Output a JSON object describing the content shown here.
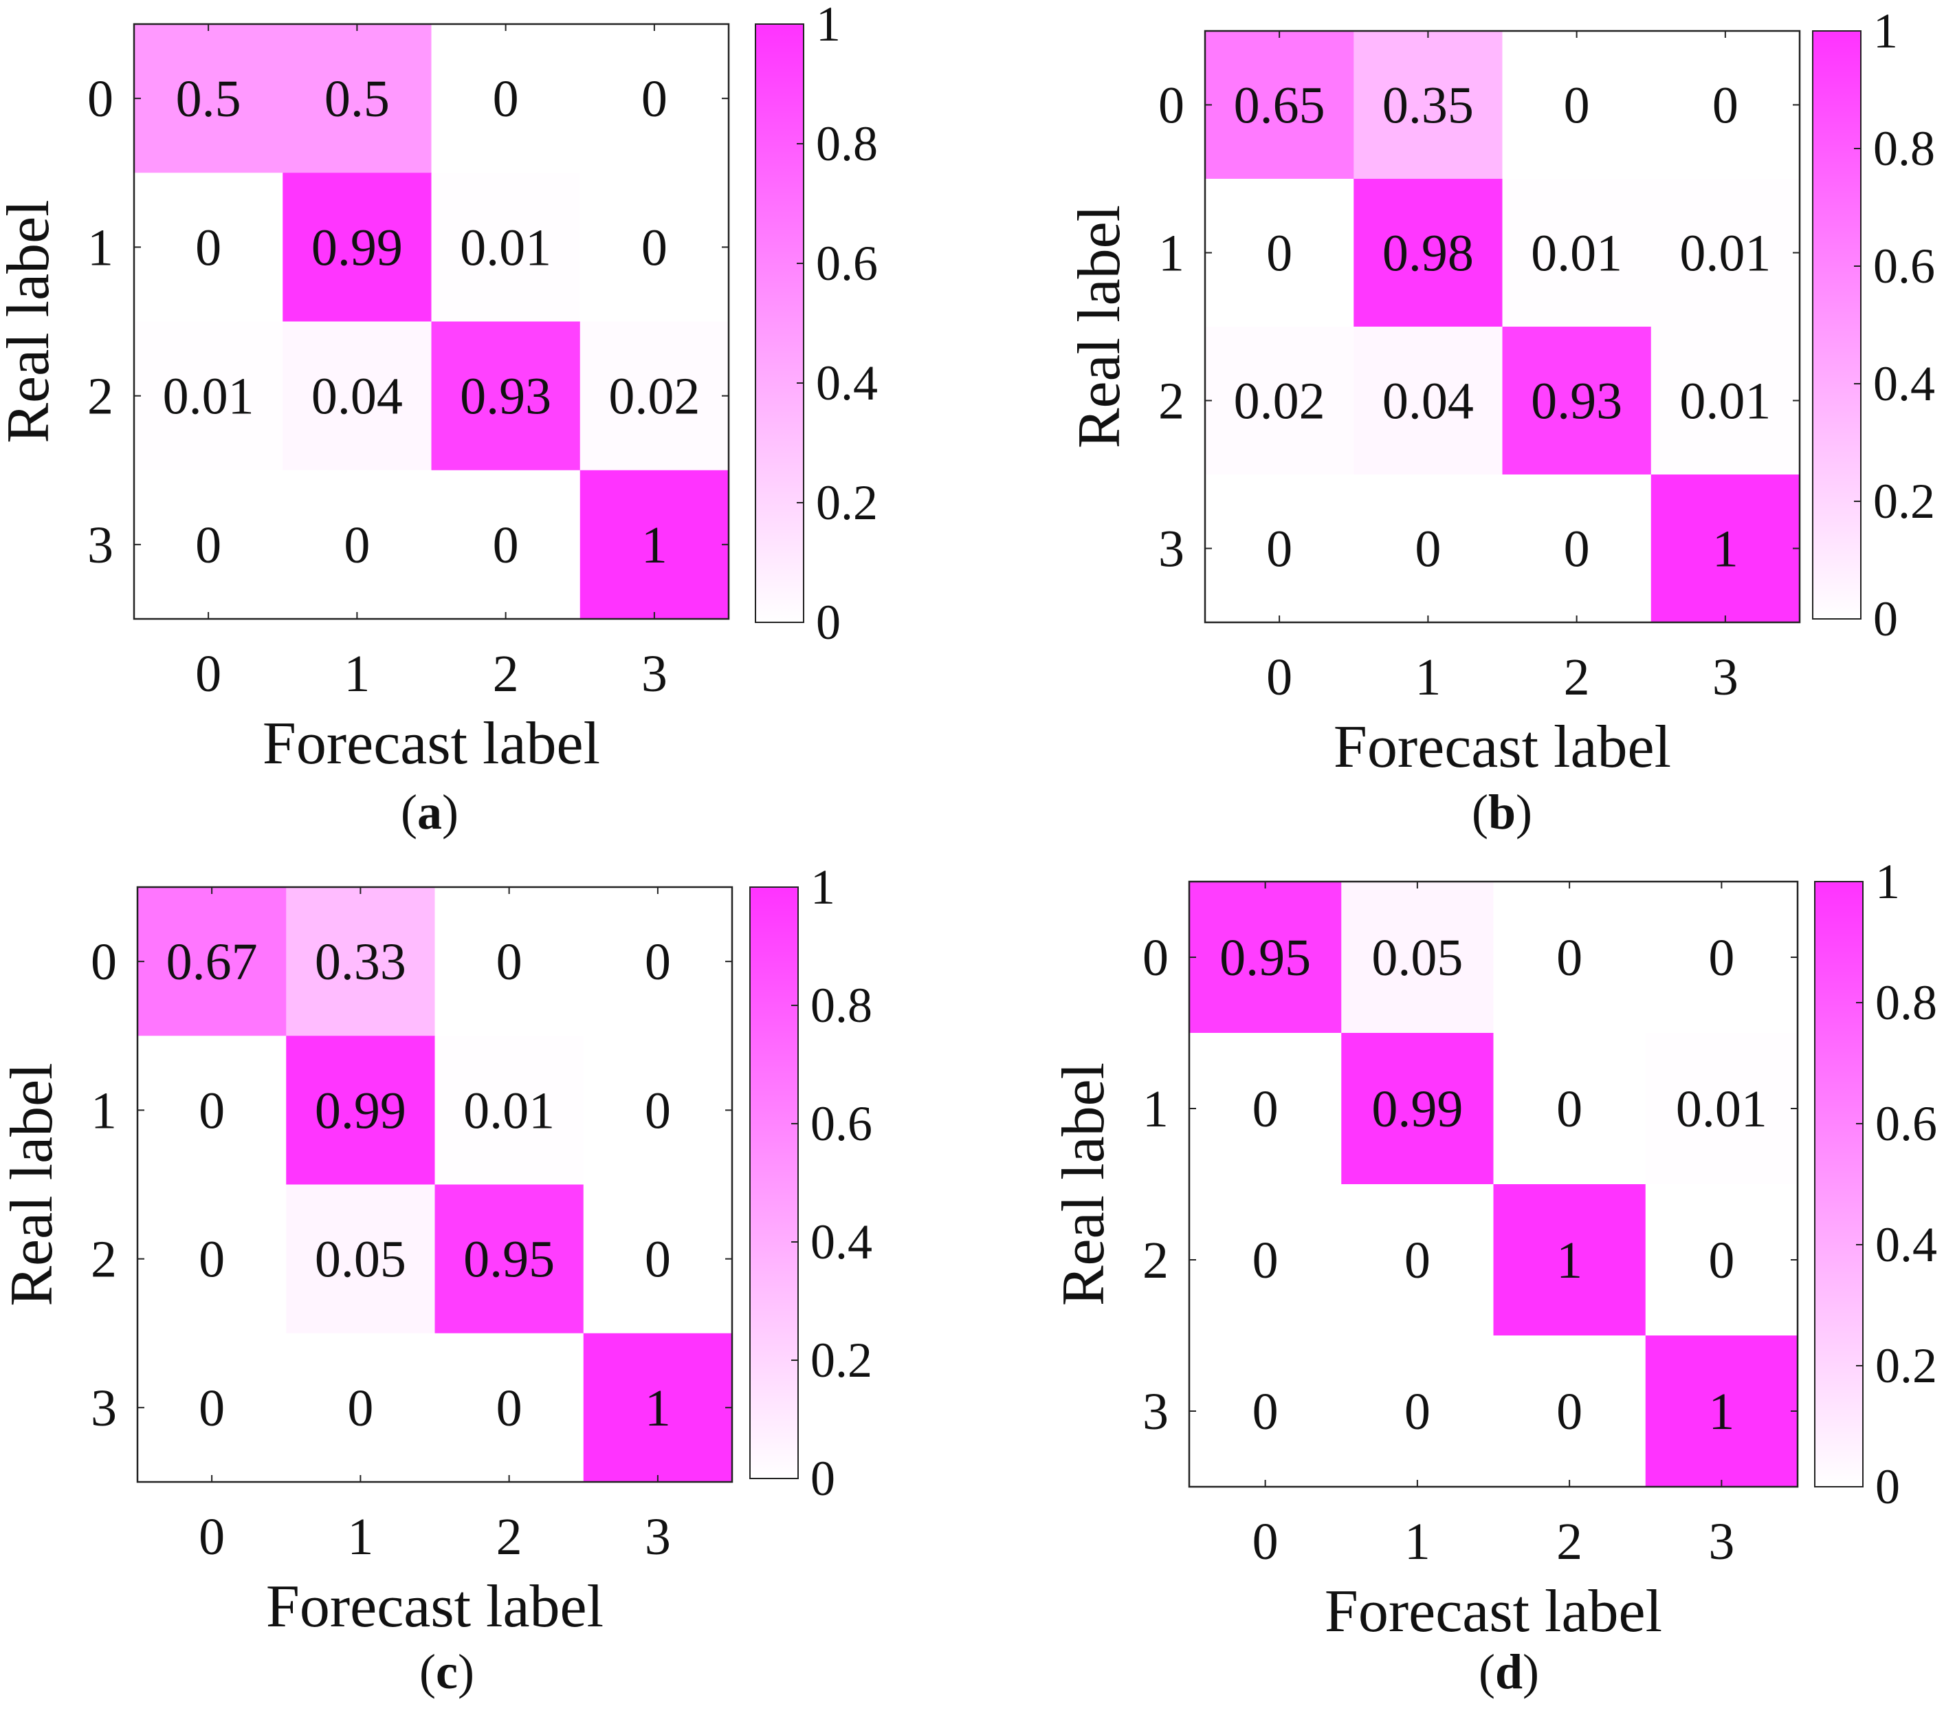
{
  "chart_data": [
    {
      "type": "heatmap",
      "panel_label": "a",
      "xlabel": "Forecast label",
      "ylabel": "Real label",
      "x_categories": [
        "0",
        "1",
        "2",
        "3"
      ],
      "y_categories": [
        "0",
        "1",
        "2",
        "3"
      ],
      "values": [
        [
          "0.5",
          "0.5",
          "0",
          "0"
        ],
        [
          "0",
          "0.99",
          "0.01",
          "0"
        ],
        [
          "0.01",
          "0.04",
          "0.93",
          "0.02"
        ],
        [
          "0",
          "0",
          "0",
          "1"
        ]
      ],
      "colorbar": {
        "range": [
          0,
          1
        ],
        "ticks": [
          "0",
          "0.2",
          "0.4",
          "0.6",
          "0.8",
          "1"
        ]
      }
    },
    {
      "type": "heatmap",
      "panel_label": "b",
      "xlabel": "Forecast label",
      "ylabel": "Real label",
      "x_categories": [
        "0",
        "1",
        "2",
        "3"
      ],
      "y_categories": [
        "0",
        "1",
        "2",
        "3"
      ],
      "values": [
        [
          "0.65",
          "0.35",
          "0",
          "0"
        ],
        [
          "0",
          "0.98",
          "0.01",
          "0.01"
        ],
        [
          "0.02",
          "0.04",
          "0.93",
          "0.01"
        ],
        [
          "0",
          "0",
          "0",
          "1"
        ]
      ],
      "colorbar": {
        "range": [
          0,
          1
        ],
        "ticks": [
          "0",
          "0.2",
          "0.4",
          "0.6",
          "0.8",
          "1"
        ]
      }
    },
    {
      "type": "heatmap",
      "panel_label": "c",
      "xlabel": "Forecast label",
      "ylabel": "Real label",
      "x_categories": [
        "0",
        "1",
        "2",
        "3"
      ],
      "y_categories": [
        "0",
        "1",
        "2",
        "3"
      ],
      "values": [
        [
          "0.67",
          "0.33",
          "0",
          "0"
        ],
        [
          "0",
          "0.99",
          "0.01",
          "0"
        ],
        [
          "0",
          "0.05",
          "0.95",
          "0"
        ],
        [
          "0",
          "0",
          "0",
          "1"
        ]
      ],
      "colorbar": {
        "range": [
          0,
          1
        ],
        "ticks": [
          "0",
          "0.2",
          "0.4",
          "0.6",
          "0.8",
          "1"
        ]
      }
    },
    {
      "type": "heatmap",
      "panel_label": "d",
      "xlabel": "Forecast label",
      "ylabel": "Real label",
      "x_categories": [
        "0",
        "1",
        "2",
        "3"
      ],
      "y_categories": [
        "0",
        "1",
        "2",
        "3"
      ],
      "values": [
        [
          "0.95",
          "0.05",
          "0",
          "0"
        ],
        [
          "0",
          "0.99",
          "0",
          "0.01"
        ],
        [
          "0",
          "0",
          "1",
          "0"
        ],
        [
          "0",
          "0",
          "0",
          "1"
        ]
      ],
      "colorbar": {
        "range": [
          0,
          1
        ],
        "ticks": [
          "0",
          "0.2",
          "0.4",
          "0.6",
          "0.8",
          "1"
        ]
      }
    }
  ],
  "colors": {
    "high": "#ff33ff",
    "low": "#ffffff"
  }
}
